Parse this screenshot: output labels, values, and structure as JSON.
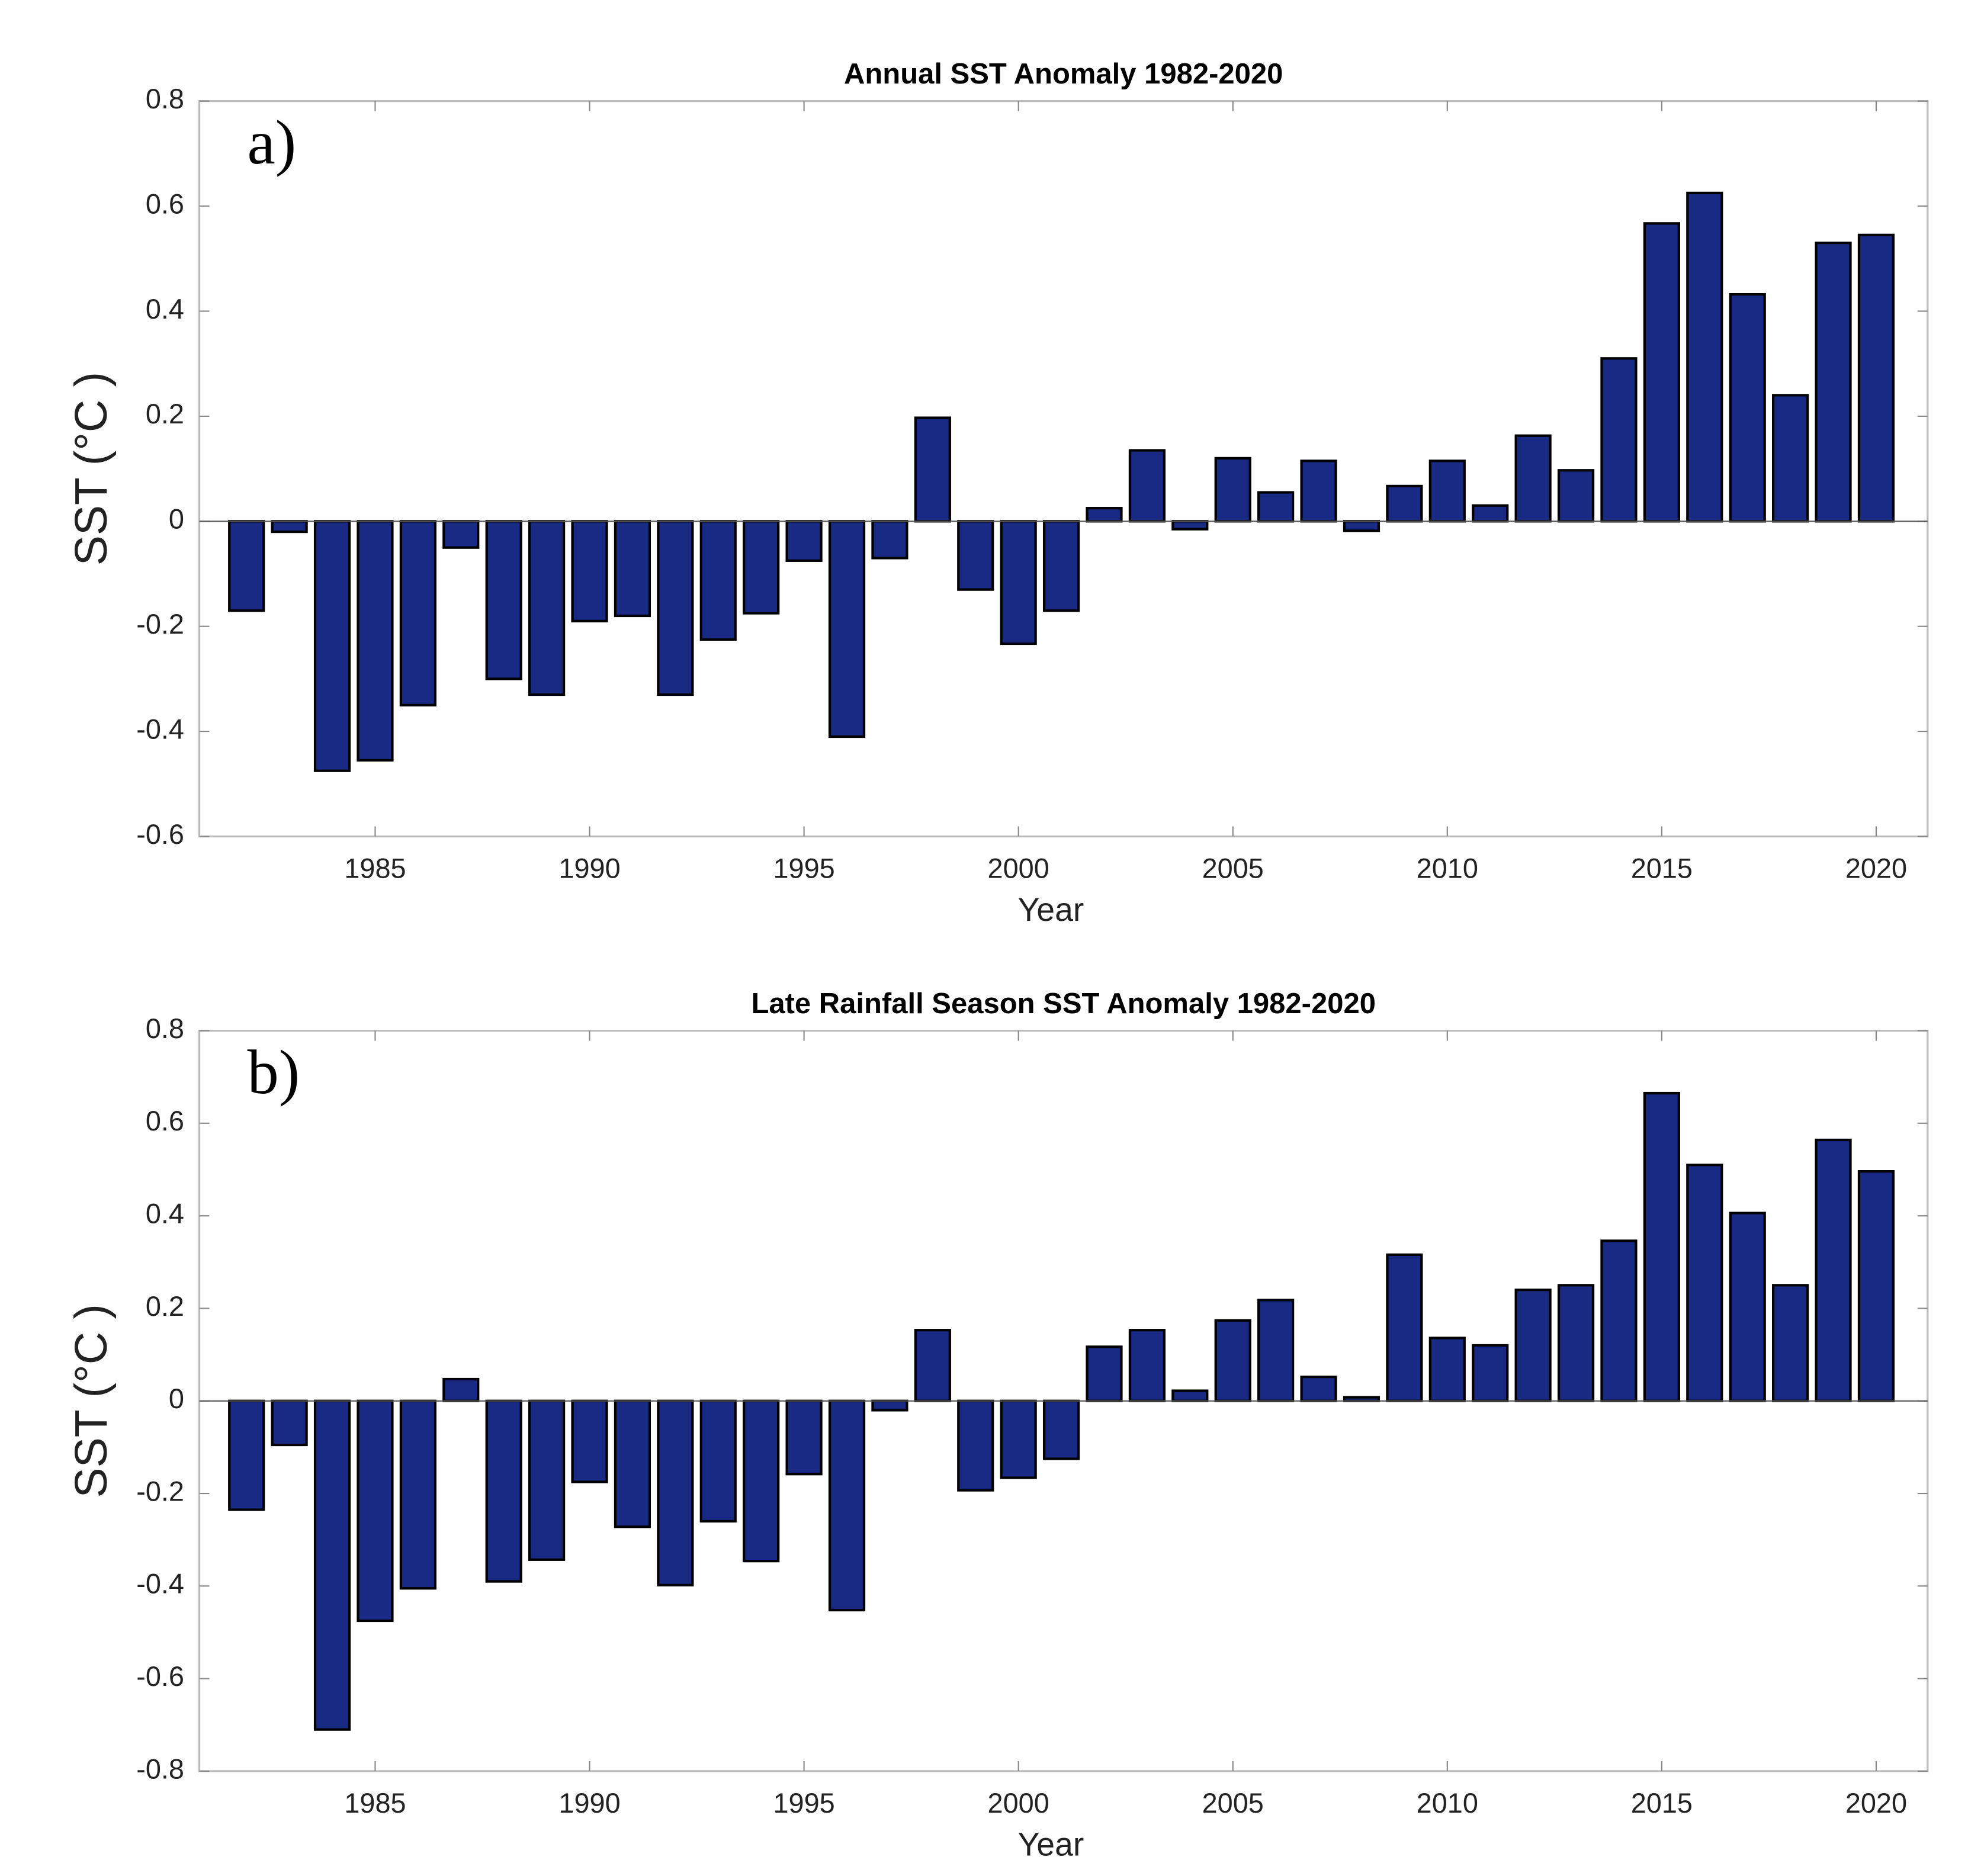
{
  "chart_data": [
    {
      "type": "bar",
      "title": "Annual SST Anomaly 1982-2020",
      "annotation": "a)",
      "xlabel": "Year",
      "ylabel": "SST (°C )",
      "x": [
        1982,
        1983,
        1984,
        1985,
        1986,
        1987,
        1988,
        1989,
        1990,
        1991,
        1992,
        1993,
        1994,
        1995,
        1996,
        1997,
        1998,
        1999,
        2000,
        2001,
        2002,
        2003,
        2004,
        2005,
        2006,
        2007,
        2008,
        2009,
        2010,
        2011,
        2012,
        2013,
        2014,
        2015,
        2016,
        2017,
        2018,
        2019,
        2020
      ],
      "values": [
        -0.17,
        -0.02,
        -0.475,
        -0.455,
        -0.35,
        -0.05,
        -0.3,
        -0.33,
        -0.19,
        -0.18,
        -0.33,
        -0.225,
        -0.175,
        -0.075,
        -0.41,
        -0.07,
        0.197,
        -0.13,
        -0.233,
        -0.17,
        0.025,
        0.135,
        -0.015,
        0.12,
        0.055,
        0.115,
        -0.018,
        0.067,
        0.115,
        0.03,
        0.163,
        0.097,
        0.31,
        0.567,
        0.625,
        0.432,
        0.24,
        0.53,
        0.545
      ],
      "color": "#182a84",
      "xlim": [
        1980.9,
        2021.2
      ],
      "xticks": [
        1985,
        1990,
        1995,
        2000,
        2005,
        2010,
        2015,
        2020
      ],
      "ylim": [
        -0.6,
        0.8
      ],
      "yticks": [
        -0.6,
        -0.4,
        -0.2,
        0,
        0.2,
        0.4,
        0.6,
        0.8
      ],
      "grid": false
    },
    {
      "type": "bar",
      "title": "Late Rainfall Season SST Anomaly 1982-2020",
      "annotation": "b)",
      "xlabel": "Year",
      "ylabel": "SST (°C )",
      "x": [
        1982,
        1983,
        1984,
        1985,
        1986,
        1987,
        1988,
        1989,
        1990,
        1991,
        1992,
        1993,
        1994,
        1995,
        1996,
        1997,
        1998,
        1999,
        2000,
        2001,
        2002,
        2003,
        2004,
        2005,
        2006,
        2007,
        2008,
        2009,
        2010,
        2011,
        2012,
        2013,
        2014,
        2015,
        2016,
        2017,
        2018,
        2019,
        2020
      ],
      "values": [
        -0.235,
        -0.095,
        -0.71,
        -0.475,
        -0.405,
        0.047,
        -0.39,
        -0.343,
        -0.175,
        -0.272,
        -0.398,
        -0.26,
        -0.346,
        -0.158,
        -0.452,
        -0.02,
        0.153,
        -0.193,
        -0.166,
        -0.125,
        0.117,
        0.153,
        0.022,
        0.174,
        0.218,
        0.052,
        0.008,
        0.316,
        0.136,
        0.12,
        0.24,
        0.25,
        0.346,
        0.665,
        0.51,
        0.406,
        0.25,
        0.564,
        0.496
      ],
      "color": "#182a84",
      "xlim": [
        1980.9,
        2021.2
      ],
      "xticks": [
        1985,
        1990,
        1995,
        2000,
        2005,
        2010,
        2015,
        2020
      ],
      "ylim": [
        -0.8,
        0.8
      ],
      "yticks": [
        -0.8,
        -0.6,
        -0.4,
        -0.2,
        0,
        0.2,
        0.4,
        0.6,
        0.8
      ],
      "grid": false
    }
  ]
}
